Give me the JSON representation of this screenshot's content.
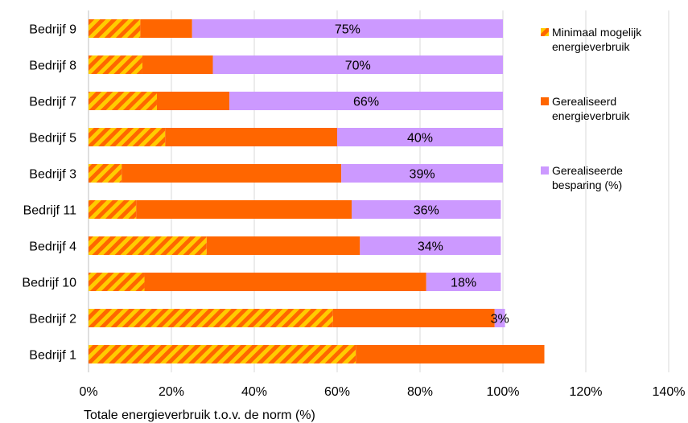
{
  "chart_data": {
    "type": "bar",
    "orientation": "horizontal",
    "stacked": true,
    "categories": [
      "Bedrijf 9",
      "Bedrijf 8",
      "Bedrijf 7",
      "Bedrijf 5",
      "Bedrijf 3",
      "Bedrijf 11",
      "Bedrijf 4",
      "Bedrijf 10",
      "Bedrijf 2",
      "Bedrijf 1"
    ],
    "series": [
      {
        "name": "Minimaal mogelijk energieverbruik",
        "color": "#ff6600",
        "pattern": "orange-yellow-diagonal-hatch",
        "values": [
          12.5,
          13,
          16.5,
          18.5,
          8,
          11.5,
          28.5,
          13.5,
          59,
          64.5
        ]
      },
      {
        "name": "Gerealiseerd energieverbruik",
        "color": "#ff6600",
        "values": [
          12.5,
          17,
          17.5,
          41.5,
          53,
          52,
          37,
          68,
          39,
          45.5
        ]
      },
      {
        "name": "Gerealiseerde besparing (%)",
        "color": "#cc99ff",
        "values": [
          75,
          70,
          66,
          40,
          39,
          36,
          34,
          18,
          2.5,
          0
        ]
      }
    ],
    "data_labels": [
      "75%",
      "70%",
      "66%",
      "40%",
      "39%",
      "36%",
      "34%",
      "18%",
      "3%",
      ""
    ],
    "xlabel": "Totale energieverbruik t.o.v. de norm (%)",
    "ylabel": "",
    "xlim": [
      0,
      140
    ],
    "xticks": [
      "0%",
      "20%",
      "40%",
      "60%",
      "80%",
      "100%",
      "120%",
      "140%"
    ],
    "grid": true,
    "legend_position": "right"
  }
}
